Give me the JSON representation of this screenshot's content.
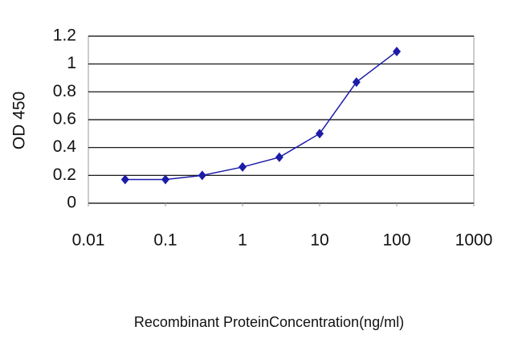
{
  "chart_data": {
    "type": "line",
    "x_label": "Recombinant ProteinConcentration(ng/ml)",
    "y_label": "OD 450",
    "x": [
      0.03,
      0.1,
      0.3,
      1,
      3,
      10,
      30,
      100
    ],
    "series": [
      {
        "color": "#1c1ca8",
        "values": [
          0.17,
          0.17,
          0.2,
          0.26,
          0.33,
          0.5,
          0.87,
          1.09
        ]
      }
    ],
    "xlim": [
      0.01,
      1000
    ],
    "xticks": [
      0.01,
      0.1,
      1,
      10,
      100,
      1000
    ],
    "xscale": "log",
    "ylim": [
      0,
      1.2
    ],
    "yticks": [
      0,
      0.2,
      0.4,
      0.6,
      0.8,
      1,
      1.2
    ],
    "grid": true
  }
}
